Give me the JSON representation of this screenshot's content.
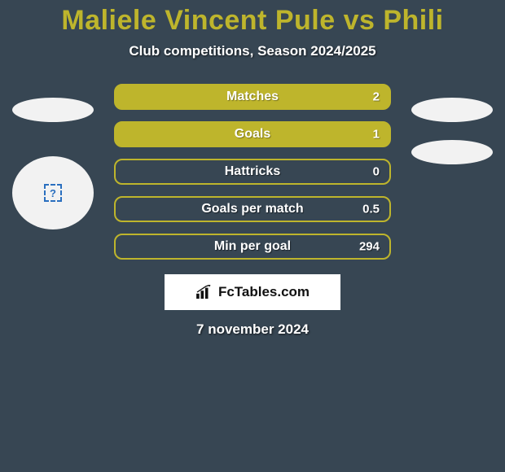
{
  "background_color": "#374653",
  "title": {
    "text": "Maliele Vincent Pule vs Phili",
    "color": "#beb52c",
    "fontsize": 34
  },
  "subtitle": "Club competitions, Season 2024/2025",
  "stats": {
    "bar_fill_color": "#beb52c",
    "bar_outline_color": "#beb52c",
    "label_color": "#ffffff",
    "rows": [
      {
        "label": "Matches",
        "right_value": "2",
        "filled": true
      },
      {
        "label": "Goals",
        "right_value": "1",
        "filled": true
      },
      {
        "label": "Hattricks",
        "right_value": "0",
        "filled": false
      },
      {
        "label": "Goals per match",
        "right_value": "0.5",
        "filled": false
      },
      {
        "label": "Min per goal",
        "right_value": "294",
        "filled": false
      }
    ]
  },
  "ellipses": {
    "color": "#f2f2f2",
    "left": [
      {
        "type": "ellipse"
      },
      {
        "type": "circle_with_placeholder"
      }
    ],
    "right": [
      {
        "type": "ellipse"
      },
      {
        "type": "ellipse"
      }
    ]
  },
  "brand": {
    "name": "FcTables.com",
    "icon": "bar-chart-icon",
    "box_bg": "#ffffff",
    "text_color": "#111111"
  },
  "date": "7 november 2024"
}
